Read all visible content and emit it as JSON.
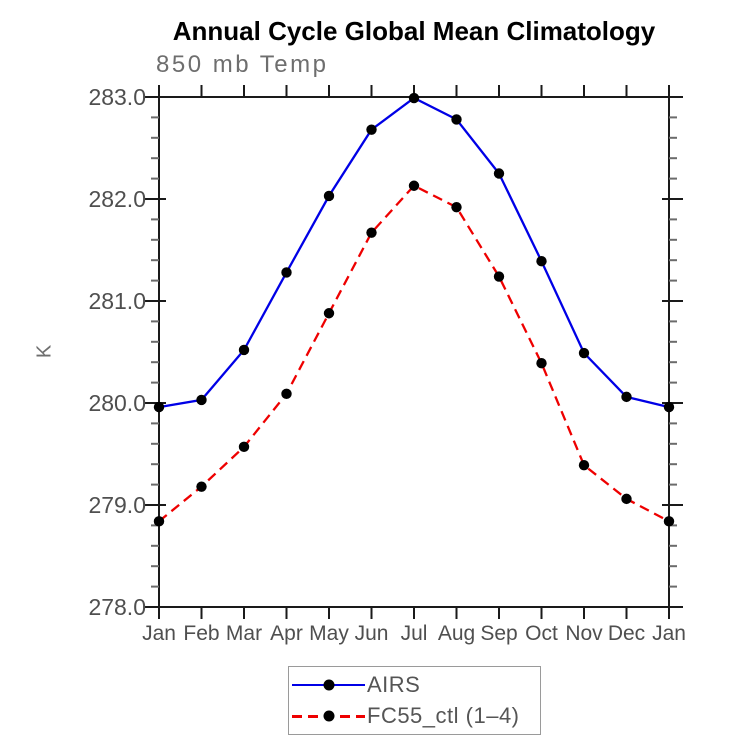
{
  "title": "Annual Cycle Global Mean Climatology",
  "subtitle": "850 mb Temp",
  "y_axis": {
    "label": "K",
    "tick_labels": [
      "278.0",
      "279.0",
      "280.0",
      "281.0",
      "282.0",
      "283.0"
    ]
  },
  "x_axis": {
    "tick_labels": [
      "Jan",
      "Feb",
      "Mar",
      "Apr",
      "May",
      "Jun",
      "Jul",
      "Aug",
      "Sep",
      "Oct",
      "Nov",
      "Dec",
      "Jan"
    ]
  },
  "legend": {
    "items": [
      {
        "label": "AIRS",
        "line_color": "#0000e6",
        "line_style": "solid",
        "marker": "filled-circle",
        "marker_color": "#000000"
      },
      {
        "label": "FC55_ctl (1–4)",
        "line_color": "#ee0000",
        "line_style": "dashed",
        "marker": "filled-circle",
        "marker_color": "#000000"
      }
    ]
  },
  "colors": {
    "airs_blue": "#0000e6",
    "fc55_red": "#ee0000",
    "marker_black": "#000000",
    "axis_black": "#1a1a1a",
    "tick_label_gray": "#4f4f4f",
    "subtitle_gray": "#6e6e6e"
  },
  "chart_data": {
    "type": "line",
    "title": "850 mb Temp",
    "suptitle": "Annual Cycle Global Mean Climatology",
    "xlabel": "",
    "ylabel": "K",
    "x": [
      "Jan",
      "Feb",
      "Mar",
      "Apr",
      "May",
      "Jun",
      "Jul",
      "Aug",
      "Sep",
      "Oct",
      "Nov",
      "Dec",
      "Jan"
    ],
    "series": [
      {
        "name": "AIRS",
        "color": "#0000e6",
        "line_style": "solid",
        "marker": "filled-circle",
        "marker_color": "#000000",
        "values": [
          279.96,
          280.03,
          280.52,
          281.28,
          282.03,
          282.68,
          282.99,
          282.78,
          282.25,
          281.39,
          280.49,
          280.06,
          279.96
        ]
      },
      {
        "name": "FC55_ctl (1–4)",
        "color": "#ee0000",
        "line_style": "dashed",
        "marker": "filled-circle",
        "marker_color": "#000000",
        "values": [
          278.84,
          279.18,
          279.57,
          280.09,
          280.88,
          281.67,
          282.13,
          281.92,
          281.24,
          280.39,
          279.39,
          279.06,
          278.84
        ]
      }
    ],
    "ylim": [
      278.0,
      283.0
    ],
    "ytick_major": 1.0,
    "ytick_minor": 0.2,
    "grid": false,
    "legend_position": "bottom-center"
  }
}
